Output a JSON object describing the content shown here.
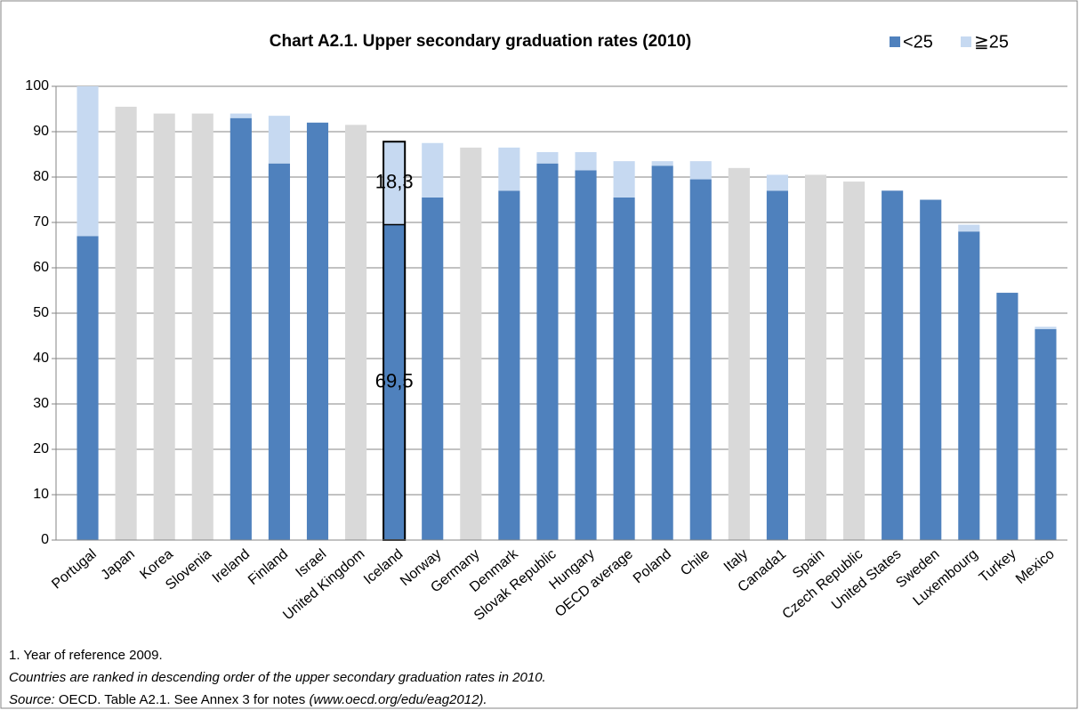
{
  "chart_data": {
    "type": "stacked_bar",
    "title": "Chart A2.1. Upper secondary graduation rates (2010)",
    "categories": [
      "Portugal",
      "Japan",
      "Korea",
      "Slovenia",
      "Ireland",
      "Finland",
      "Israel",
      "United Kingdom",
      "Iceland",
      "Norway",
      "Germany",
      "Denmark",
      "Slovak Republic",
      "Hungary",
      "OECD average",
      "Poland",
      "Chile",
      "Italy",
      "Canada1",
      "Spain",
      "Czech Republic",
      "United States",
      "Sweden",
      "Luxembourg",
      "Turkey",
      "Mexico"
    ],
    "series": [
      {
        "name": "<25",
        "color": "#4f81bd",
        "values": [
          67,
          null,
          null,
          null,
          93,
          83,
          92,
          null,
          69.5,
          75.5,
          null,
          77,
          83,
          81.5,
          75.5,
          82.5,
          79.5,
          null,
          77,
          null,
          null,
          77,
          75,
          68,
          54.5,
          46.5
        ],
        "value_labels": [
          null,
          null,
          null,
          null,
          null,
          null,
          null,
          null,
          "69,5",
          null,
          null,
          null,
          null,
          null,
          null,
          null,
          null,
          null,
          null,
          null,
          null,
          null,
          null,
          null,
          null,
          null
        ]
      },
      {
        "name": "≧25",
        "color": "#c6d9f1",
        "values": [
          33,
          null,
          null,
          null,
          1,
          10.5,
          0,
          null,
          18.3,
          12,
          null,
          9.5,
          2.5,
          4,
          8,
          1,
          4,
          null,
          3.5,
          null,
          null,
          0,
          0,
          1.5,
          0,
          0.5
        ],
        "value_labels": [
          null,
          null,
          null,
          null,
          null,
          null,
          null,
          null,
          "18,3",
          null,
          null,
          null,
          null,
          null,
          null,
          null,
          null,
          null,
          null,
          null,
          null,
          null,
          null,
          null,
          null,
          null
        ]
      },
      {
        "color": "#d9d9d9",
        "values": [
          null,
          95.5,
          94,
          94,
          null,
          null,
          null,
          91.5,
          null,
          null,
          86.5,
          null,
          null,
          null,
          null,
          null,
          null,
          82,
          null,
          80.5,
          79,
          null,
          null,
          null,
          null,
          null
        ]
      }
    ],
    "ylim": [
      0,
      100
    ],
    "yticks": [
      0,
      10,
      20,
      30,
      40,
      50,
      60,
      70,
      80,
      90,
      100
    ],
    "grid": true,
    "notes": [
      "1. Year of reference 2009.",
      "Countries are ranked in descending order of the upper secondary graduation rates in 2010."
    ],
    "source": {
      "label": "Source:",
      "text": "OECD. Table A2.1. See Annex 3 for notes",
      "link": "(www.oecd.org/edu/eag2012)."
    }
  }
}
